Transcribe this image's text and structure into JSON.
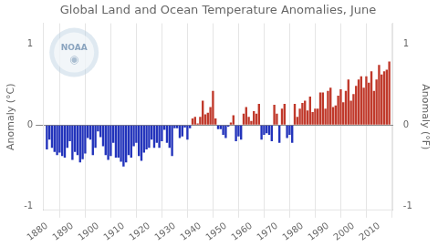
{
  "chart_data": {
    "type": "bar",
    "title": "Global Land and Ocean Temperature Anomalies, June",
    "ylabel": "Anomaly (°C)",
    "y2label": "Anomaly (°F)",
    "annotations": [
      "NOAA",
      "◉"
    ],
    "x": [
      1880,
      1881,
      1882,
      1883,
      1884,
      1885,
      1886,
      1887,
      1888,
      1889,
      1890,
      1891,
      1892,
      1893,
      1894,
      1895,
      1896,
      1897,
      1898,
      1899,
      1900,
      1901,
      1902,
      1903,
      1904,
      1905,
      1906,
      1907,
      1908,
      1909,
      1910,
      1911,
      1912,
      1913,
      1914,
      1915,
      1916,
      1917,
      1918,
      1919,
      1920,
      1921,
      1922,
      1923,
      1924,
      1925,
      1926,
      1927,
      1928,
      1929,
      1930,
      1931,
      1932,
      1933,
      1934,
      1935,
      1936,
      1937,
      1938,
      1939,
      1940,
      1941,
      1942,
      1943,
      1944,
      1945,
      1946,
      1947,
      1948,
      1949,
      1950,
      1951,
      1952,
      1953,
      1954,
      1955,
      1956,
      1957,
      1958,
      1959,
      1960,
      1961,
      1962,
      1963,
      1964,
      1965,
      1966,
      1967,
      1968,
      1969,
      1970,
      1971,
      1972,
      1973,
      1974,
      1975,
      1976,
      1977,
      1978,
      1979,
      1980,
      1981,
      1982,
      1983,
      1984,
      1985,
      1986,
      1987,
      1988,
      1989,
      1990,
      1991,
      1992,
      1993,
      1994,
      1995,
      1996,
      1997,
      1998,
      1999,
      2000,
      2001,
      2002,
      2003,
      2004,
      2005,
      2006,
      2007,
      2008,
      2009,
      2010,
      2011,
      2012,
      2013,
      2014
    ],
    "values": [
      -0.3,
      -0.18,
      -0.28,
      -0.33,
      -0.37,
      -0.34,
      -0.38,
      -0.4,
      -0.28,
      -0.2,
      -0.43,
      -0.33,
      -0.37,
      -0.46,
      -0.42,
      -0.35,
      -0.16,
      -0.18,
      -0.37,
      -0.28,
      -0.08,
      -0.15,
      -0.26,
      -0.37,
      -0.43,
      -0.38,
      -0.22,
      -0.4,
      -0.4,
      -0.45,
      -0.51,
      -0.46,
      -0.37,
      -0.4,
      -0.26,
      -0.22,
      -0.38,
      -0.44,
      -0.34,
      -0.3,
      -0.28,
      -0.18,
      -0.28,
      -0.22,
      -0.28,
      -0.2,
      -0.06,
      -0.22,
      -0.28,
      -0.38,
      -0.04,
      -0.04,
      -0.16,
      -0.14,
      -0.03,
      -0.18,
      -0.04,
      0.08,
      0.1,
      0.02,
      0.1,
      0.3,
      0.13,
      0.15,
      0.22,
      0.42,
      0.08,
      -0.05,
      -0.05,
      -0.12,
      -0.16,
      -0.02,
      0.03,
      0.12,
      -0.2,
      -0.14,
      -0.18,
      0.14,
      0.22,
      0.1,
      0.05,
      0.17,
      0.14,
      0.26,
      -0.18,
      -0.12,
      -0.1,
      -0.12,
      -0.2,
      0.25,
      0.14,
      -0.22,
      0.2,
      0.26,
      -0.16,
      -0.12,
      -0.22,
      0.26,
      0.1,
      0.2,
      0.27,
      0.3,
      0.18,
      0.35,
      0.16,
      0.2,
      0.2,
      0.4,
      0.4,
      0.2,
      0.42,
      0.46,
      0.22,
      0.24,
      0.36,
      0.44,
      0.28,
      0.42,
      0.56,
      0.3,
      0.38,
      0.48,
      0.56,
      0.6,
      0.46,
      0.6,
      0.52,
      0.66,
      0.42,
      0.56,
      0.74,
      0.62,
      0.66,
      0.68,
      0.78
    ],
    "colors": [
      "#2233bb",
      "#2233bb",
      "#2233bb",
      "#2233bb",
      "#2233bb",
      "#2233bb",
      "#2233bb",
      "#2233bb",
      "#2233bb",
      "#2233bb",
      "#2233bb",
      "#2233bb",
      "#2233bb",
      "#2233bb",
      "#2233bb",
      "#2233bb",
      "#2233bb",
      "#2233bb",
      "#2233bb",
      "#2233bb",
      "#2233bb",
      "#2233bb",
      "#2233bb",
      "#2233bb",
      "#2233bb",
      "#2233bb",
      "#2233bb",
      "#2233bb",
      "#2233bb",
      "#2233bb",
      "#2233bb",
      "#2233bb",
      "#2233bb",
      "#2233bb",
      "#2233bb",
      "#2233bb",
      "#2233bb",
      "#2233bb",
      "#2233bb",
      "#2233bb",
      "#2233bb",
      "#2233bb",
      "#2233bb",
      "#2233bb",
      "#2233bb",
      "#2233bb",
      "#2233bb",
      "#2233bb",
      "#2233bb",
      "#2233bb",
      "#2233bb",
      "#2233bb",
      "#2233bb",
      "#2233bb",
      "#2233bb",
      "#2233bb",
      "#2233bb",
      "#c0392b",
      "#c0392b",
      "#c0392b",
      "#c0392b",
      "#c0392b",
      "#c0392b",
      "#c0392b",
      "#c0392b",
      "#c0392b",
      "#c0392b",
      "#2233bb",
      "#2233bb",
      "#2233bb",
      "#2233bb",
      "#2233bb",
      "#c0392b",
      "#c0392b",
      "#2233bb",
      "#2233bb",
      "#2233bb",
      "#c0392b",
      "#c0392b",
      "#c0392b",
      "#c0392b",
      "#c0392b",
      "#c0392b",
      "#c0392b",
      "#2233bb",
      "#2233bb",
      "#2233bb",
      "#2233bb",
      "#2233bb",
      "#c0392b",
      "#c0392b",
      "#2233bb",
      "#c0392b",
      "#c0392b",
      "#2233bb",
      "#2233bb",
      "#2233bb",
      "#c0392b",
      "#c0392b",
      "#c0392b",
      "#c0392b",
      "#c0392b",
      "#c0392b",
      "#c0392b",
      "#c0392b",
      "#c0392b",
      "#c0392b",
      "#c0392b",
      "#c0392b",
      "#c0392b",
      "#c0392b",
      "#c0392b",
      "#c0392b",
      "#c0392b",
      "#c0392b",
      "#c0392b",
      "#c0392b",
      "#c0392b",
      "#c0392b",
      "#c0392b",
      "#c0392b",
      "#c0392b",
      "#c0392b",
      "#c0392b",
      "#c0392b",
      "#c0392b",
      "#c0392b",
      "#c0392b",
      "#c0392b",
      "#c0392b",
      "#c0392b",
      "#c0392b",
      "#c0392b",
      "#c0392b",
      "#c0392b"
    ],
    "xlim": [
      1878.5,
      2015.5
    ],
    "xticks": [
      1880,
      1890,
      1900,
      1910,
      1920,
      1930,
      1940,
      1950,
      1960,
      1970,
      1980,
      1990,
      2000,
      2010
    ],
    "ylim": [
      -1.05,
      1.25
    ],
    "yticks": [
      -1,
      0,
      1
    ],
    "y2lim": [
      -1.05,
      1.25
    ],
    "y2ticks": [
      -1,
      0,
      1
    ],
    "grid": "x"
  }
}
